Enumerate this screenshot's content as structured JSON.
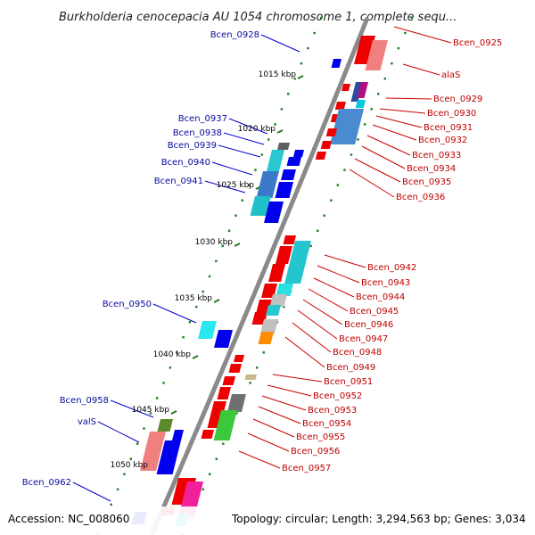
{
  "title": "Burkholderia cenocepacia AU 1054 chromosome 1, complete sequ...",
  "footer": {
    "accession": "Accession: NC_008060",
    "summary": "Topology: circular; Length: 3,294,563 bp; Genes: 3,034"
  },
  "ticks": [
    "1015 kbp",
    "1020 kbp",
    "1025 kbp",
    "1030 kbp",
    "1035 kbp",
    "1040 kbp",
    "1045 kbp",
    "1050 kbp"
  ],
  "left_labels": [
    "Bcen_0928",
    "Bcen_0937",
    "Bcen_0938",
    "Bcen_0939",
    "Bcen_0940",
    "Bcen_0941",
    "Bcen_0950",
    "Bcen_0958",
    "valS",
    "Bcen_0962"
  ],
  "right_labels": [
    "Bcen_0925",
    "alaS",
    "Bcen_0929",
    "Bcen_0930",
    "Bcen_0931",
    "Bcen_0932",
    "Bcen_0933",
    "Bcen_0934",
    "Bcen_0935",
    "Bcen_0936",
    "Bcen_0942",
    "Bcen_0943",
    "Bcen_0944",
    "Bcen_0945",
    "Bcen_0946",
    "Bcen_0947",
    "Bcen_0948",
    "Bcen_0949",
    "Bcen_0951",
    "Bcen_0952",
    "Bcen_0953",
    "Bcen_0954",
    "Bcen_0955",
    "Bcen_0956",
    "Bcen_0957"
  ],
  "colors": {
    "backbone": "#8a8a8a",
    "tick": "#1e7a1e",
    "forward_gene": "#0000ee",
    "reverse_gene": "#ee0000",
    "left_label": "#0a0aa0",
    "right_label": "#c00000"
  }
}
